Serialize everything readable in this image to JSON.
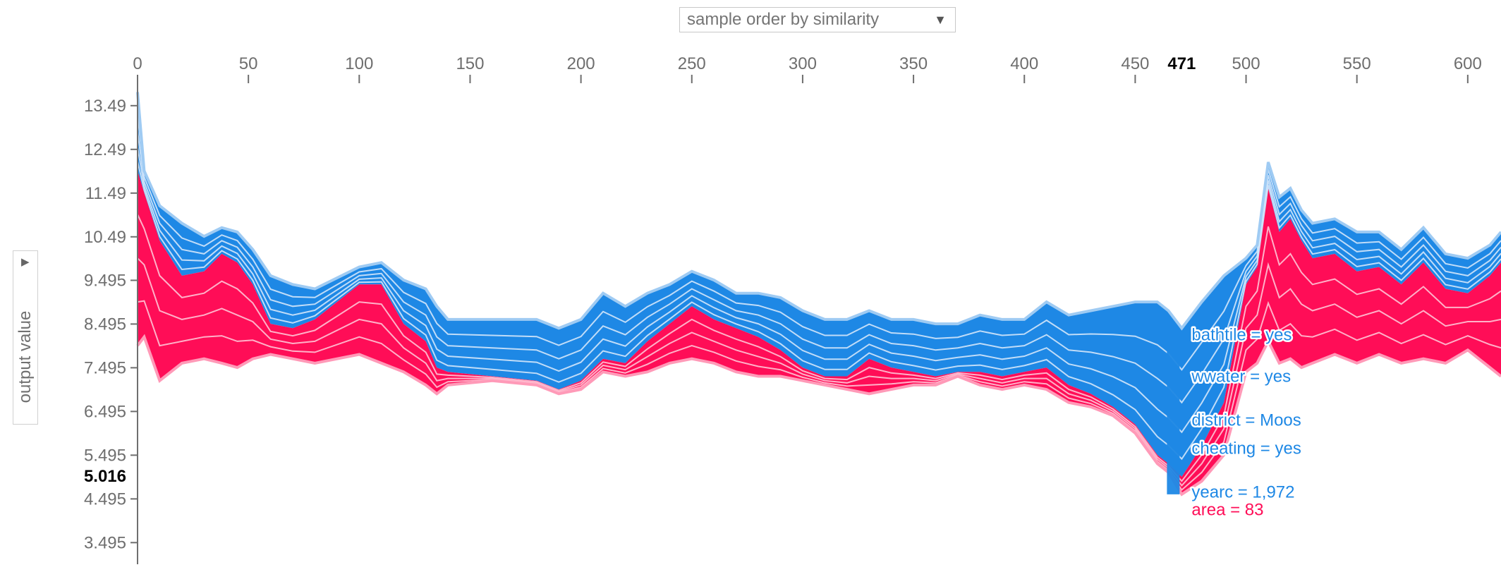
{
  "controls": {
    "sort_select_label": "sample order by similarity",
    "sort_arrow": "▼",
    "ylabel_toggle": "▶"
  },
  "colors": {
    "positive": "#ff0d57",
    "positive_light": "#ffc3d5",
    "negative": "#1e88e5",
    "negative_light": "#d1e6fa",
    "axis": "#6e6e6e"
  },
  "chart_data": {
    "type": "area",
    "ylabel": "output value",
    "xlim": [
      0,
      615
    ],
    "ylim": [
      3.0,
      14.1
    ],
    "x_ticks": [
      "0",
      "50",
      "100",
      "150",
      "200",
      "250",
      "300",
      "350",
      "400",
      "450",
      "500",
      "550",
      "600"
    ],
    "y_ticks": [
      "13.49",
      "12.49",
      "11.49",
      "10.49",
      "9.495",
      "8.495",
      "7.495",
      "6.495",
      "5.495",
      "4.495",
      "3.495"
    ],
    "highlight": {
      "x": 471,
      "x_label": "471",
      "value_label": "5.016"
    },
    "feature_labels": [
      {
        "text": "bathtile = yes",
        "effect": "negative",
        "value": 8.25
      },
      {
        "text": "wwater = yes",
        "effect": "negative",
        "value": 7.3
      },
      {
        "text": "district = Moos",
        "effect": "negative",
        "value": 6.3
      },
      {
        "text": "cheating = yes",
        "effect": "negative",
        "value": 5.65
      },
      {
        "text": "yearc = 1,972",
        "effect": "negative",
        "value": 4.65
      },
      {
        "text": "area = 83",
        "effect": "positive",
        "value": 4.25
      }
    ],
    "series": [
      {
        "effect": "upper_envelope",
        "x": [
          0,
          3,
          10,
          20,
          30,
          38,
          45,
          52,
          60,
          70,
          80,
          100,
          110,
          120,
          130,
          135,
          140,
          160,
          180,
          190,
          200,
          210,
          220,
          230,
          240,
          250,
          260,
          270,
          280,
          290,
          300,
          310,
          320,
          330,
          340,
          350,
          360,
          370,
          380,
          390,
          400,
          410,
          420,
          430,
          440,
          450,
          460,
          465,
          471,
          480,
          490,
          500,
          505,
          510,
          515,
          520,
          525,
          530,
          540,
          550,
          560,
          570,
          580,
          590,
          600,
          610,
          615
        ],
        "values": [
          13.8,
          12.0,
          11.2,
          10.8,
          10.5,
          10.7,
          10.6,
          10.2,
          9.6,
          9.4,
          9.3,
          9.8,
          9.9,
          9.5,
          9.3,
          8.9,
          8.6,
          8.6,
          8.6,
          8.4,
          8.6,
          9.2,
          8.9,
          9.2,
          9.4,
          9.7,
          9.5,
          9.2,
          9.2,
          9.1,
          8.8,
          8.6,
          8.6,
          8.8,
          8.6,
          8.6,
          8.5,
          8.5,
          8.7,
          8.6,
          8.6,
          9.0,
          8.7,
          8.8,
          8.9,
          9.0,
          9.0,
          8.8,
          8.4,
          9.0,
          9.6,
          10.0,
          10.3,
          12.2,
          11.4,
          11.6,
          11.1,
          10.8,
          10.9,
          10.6,
          10.6,
          10.2,
          10.7,
          10.1,
          10.0,
          10.3,
          10.6
        ]
      },
      {
        "effect": "lower_envelope",
        "x": [
          0,
          3,
          10,
          20,
          30,
          38,
          45,
          52,
          60,
          70,
          80,
          100,
          110,
          120,
          130,
          135,
          140,
          160,
          180,
          190,
          200,
          210,
          220,
          230,
          240,
          250,
          260,
          270,
          280,
          290,
          300,
          310,
          320,
          330,
          340,
          350,
          360,
          370,
          380,
          390,
          400,
          410,
          420,
          430,
          440,
          450,
          460,
          465,
          471,
          480,
          490,
          500,
          505,
          510,
          515,
          520,
          525,
          530,
          540,
          550,
          560,
          570,
          580,
          590,
          600,
          610,
          615
        ],
        "values": [
          8.0,
          8.2,
          7.2,
          7.6,
          7.7,
          7.6,
          7.5,
          7.7,
          7.8,
          7.7,
          7.6,
          7.8,
          7.6,
          7.4,
          7.1,
          6.9,
          7.1,
          7.2,
          7.1,
          6.9,
          7.0,
          7.4,
          7.3,
          7.4,
          7.6,
          7.7,
          7.6,
          7.4,
          7.3,
          7.3,
          7.2,
          7.1,
          7.0,
          6.9,
          7.0,
          7.1,
          7.1,
          7.3,
          7.1,
          7.0,
          7.1,
          7.0,
          6.7,
          6.6,
          6.4,
          6.0,
          5.3,
          5.1,
          4.6,
          4.9,
          5.5,
          7.4,
          7.6,
          8.1,
          7.6,
          7.7,
          7.5,
          7.6,
          7.8,
          7.6,
          7.8,
          7.6,
          7.7,
          7.6,
          7.9,
          7.5,
          7.3
        ]
      },
      {
        "effect": "pos_neg_boundary",
        "x": [
          0,
          3,
          10,
          20,
          30,
          38,
          45,
          52,
          60,
          70,
          80,
          100,
          110,
          120,
          130,
          135,
          140,
          160,
          180,
          190,
          200,
          210,
          220,
          230,
          240,
          250,
          260,
          270,
          280,
          290,
          300,
          310,
          320,
          330,
          340,
          350,
          360,
          370,
          380,
          390,
          400,
          410,
          420,
          430,
          440,
          450,
          460,
          465,
          471,
          480,
          490,
          500,
          505,
          510,
          515,
          520,
          525,
          530,
          540,
          550,
          560,
          570,
          580,
          590,
          600,
          610,
          615
        ],
        "values": [
          12.0,
          11.5,
          10.4,
          9.6,
          9.7,
          10.1,
          9.9,
          9.4,
          8.5,
          8.4,
          8.6,
          9.4,
          9.4,
          8.5,
          8.1,
          7.5,
          7.4,
          7.3,
          7.2,
          7.0,
          7.2,
          7.7,
          7.6,
          8.1,
          8.5,
          8.9,
          8.6,
          8.4,
          8.2,
          7.9,
          7.5,
          7.3,
          7.3,
          7.7,
          7.5,
          7.4,
          7.3,
          7.4,
          7.4,
          7.3,
          7.4,
          7.5,
          7.1,
          6.9,
          6.6,
          6.2,
          5.5,
          5.3,
          5.0,
          5.7,
          6.7,
          9.4,
          9.8,
          11.6,
          10.6,
          10.9,
          10.4,
          10.0,
          10.1,
          9.7,
          9.8,
          9.4,
          9.9,
          9.3,
          9.2,
          9.6,
          9.9
        ]
      }
    ]
  }
}
